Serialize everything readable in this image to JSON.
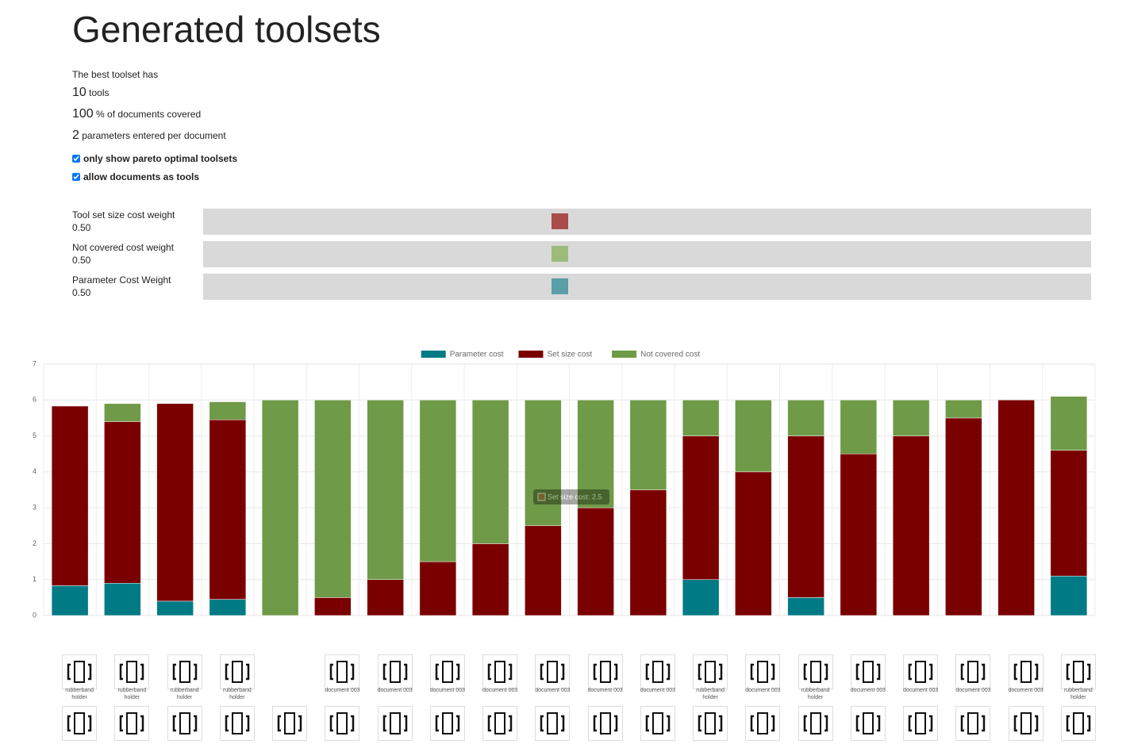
{
  "header": {
    "title": "Generated toolsets"
  },
  "summary": {
    "intro": "The best toolset has",
    "lines": [
      {
        "number": 10,
        "text": "tools"
      },
      {
        "number": 100,
        "text": "% of documents covered"
      },
      {
        "number": 2,
        "text": "parameters entered per document"
      }
    ]
  },
  "options": [
    {
      "label": "only show pareto optimal toolsets",
      "checked": true
    },
    {
      "label": "allow documents as tools",
      "checked": true
    }
  ],
  "sliders": [
    {
      "label": "Tool set size cost weight",
      "value": {
        "value": 0.5,
        "label": "0.50"
      },
      "color": "#a84d4a"
    },
    {
      "label": "Not covered cost weight",
      "value": {
        "value": 0.5,
        "label": "0.50"
      },
      "color": "#9dbb78"
    },
    {
      "label": "Parameter Cost Weight",
      "value": {
        "value": 0.5,
        "label": "0.50"
      },
      "color": "#5a9ea8"
    }
  ],
  "chart_data": {
    "type": "stacked_bar",
    "series": [
      {
        "name": "Parameter cost",
        "color": "#007a84",
        "values": [
          0.83,
          0.9,
          0.4,
          0.45,
          0,
          0,
          0,
          0,
          0,
          0,
          0,
          0,
          1,
          0,
          0.5,
          0,
          0,
          0,
          0,
          1.1
        ]
      },
      {
        "name": "Set size cost",
        "color": "#7a0000",
        "values": [
          5,
          4.5,
          5.5,
          5,
          0,
          0.5,
          1,
          1.5,
          2,
          2.5,
          3,
          3.5,
          4,
          4,
          4.5,
          4.5,
          5,
          5.5,
          6,
          3.5
        ]
      },
      {
        "name": "Not covered cost",
        "color": "#6f9a47",
        "values": [
          0,
          0.5,
          0,
          0.5,
          6,
          5.5,
          5,
          4.5,
          4,
          3.5,
          3,
          2.5,
          1,
          2,
          1,
          1.5,
          1,
          0.5,
          0,
          1.5
        ]
      }
    ],
    "ylim": [
      0,
      7
    ],
    "yticks": [
      0,
      1,
      2,
      3,
      4,
      5,
      6,
      7
    ],
    "grid": true,
    "legend": "top",
    "tooltip": "Set size cost: 2.5"
  },
  "tools": [
    "rubberband holder",
    "rubberband holder",
    "rubberband holder",
    "rubberband holder",
    null,
    "document 003",
    "document 003",
    "document 003",
    "document 003",
    "document 003",
    "document 003",
    "document 003",
    "rubberband holder",
    "document 003",
    "rubberband holder",
    "document 003",
    "document 003",
    "document 003",
    "document 003",
    "rubberband holder"
  ]
}
